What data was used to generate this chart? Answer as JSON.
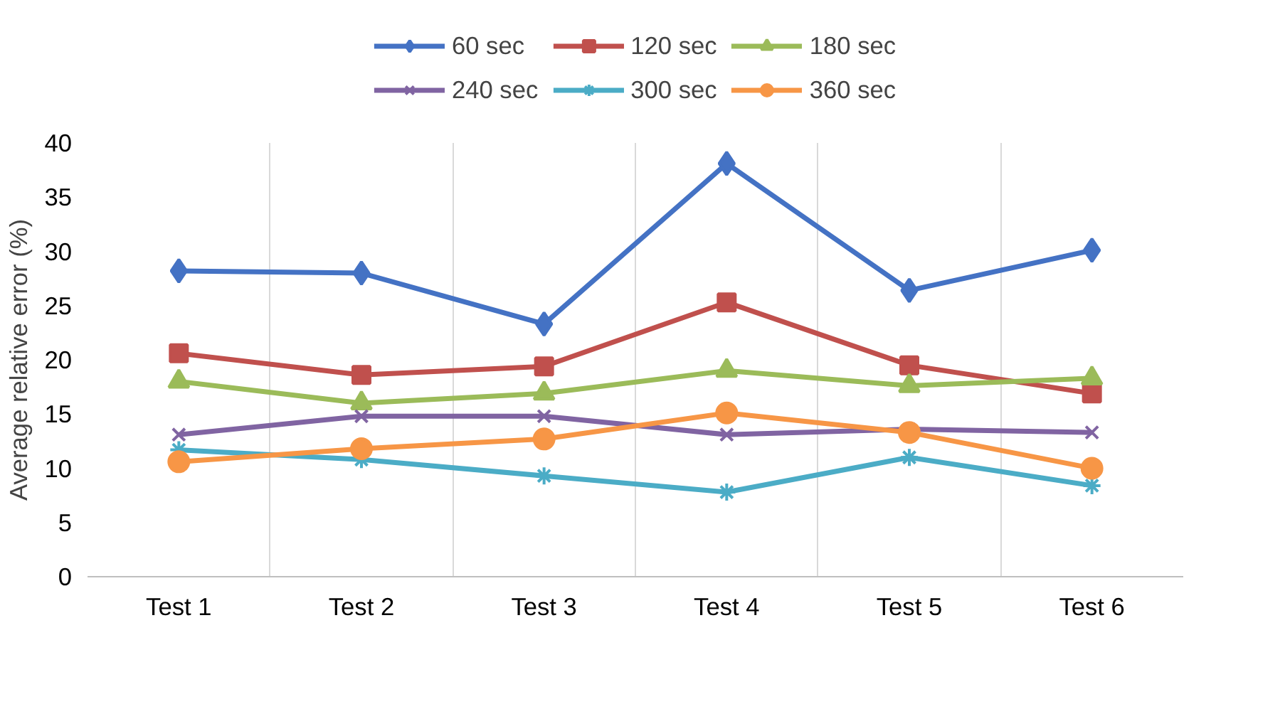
{
  "chart_data": {
    "type": "line",
    "ylabel": "Average relative error (%)",
    "categories": [
      "Test 1",
      "Test 2",
      "Test 3",
      "Test 4",
      "Test 5",
      "Test 6"
    ],
    "series": [
      {
        "name": "60 sec",
        "color": "#4472c4",
        "marker": "diamond",
        "values": [
          28.2,
          28.0,
          23.3,
          38.1,
          26.4,
          30.1
        ]
      },
      {
        "name": "120 sec",
        "color": "#c0504d",
        "marker": "square",
        "values": [
          20.6,
          18.6,
          19.4,
          25.3,
          19.5,
          16.9
        ]
      },
      {
        "name": "180 sec",
        "color": "#9bbb59",
        "marker": "triangle",
        "values": [
          18.0,
          16.0,
          16.9,
          19.0,
          17.6,
          18.3
        ]
      },
      {
        "name": "240 sec",
        "color": "#8064a2",
        "marker": "x",
        "values": [
          13.1,
          14.8,
          14.8,
          13.1,
          13.6,
          13.3
        ]
      },
      {
        "name": "300 sec",
        "color": "#4bacc6",
        "marker": "cross",
        "values": [
          11.7,
          10.8,
          9.3,
          7.8,
          11.0,
          8.4
        ]
      },
      {
        "name": "360 sec",
        "color": "#f79646",
        "marker": "circle",
        "values": [
          10.6,
          11.8,
          12.7,
          15.1,
          13.3,
          10.0
        ]
      }
    ],
    "ylim": [
      0,
      40
    ],
    "yticks": [
      0,
      5,
      10,
      15,
      20,
      25,
      30,
      35,
      40
    ],
    "grid": "x",
    "legend": "top",
    "line_style": "solid"
  }
}
